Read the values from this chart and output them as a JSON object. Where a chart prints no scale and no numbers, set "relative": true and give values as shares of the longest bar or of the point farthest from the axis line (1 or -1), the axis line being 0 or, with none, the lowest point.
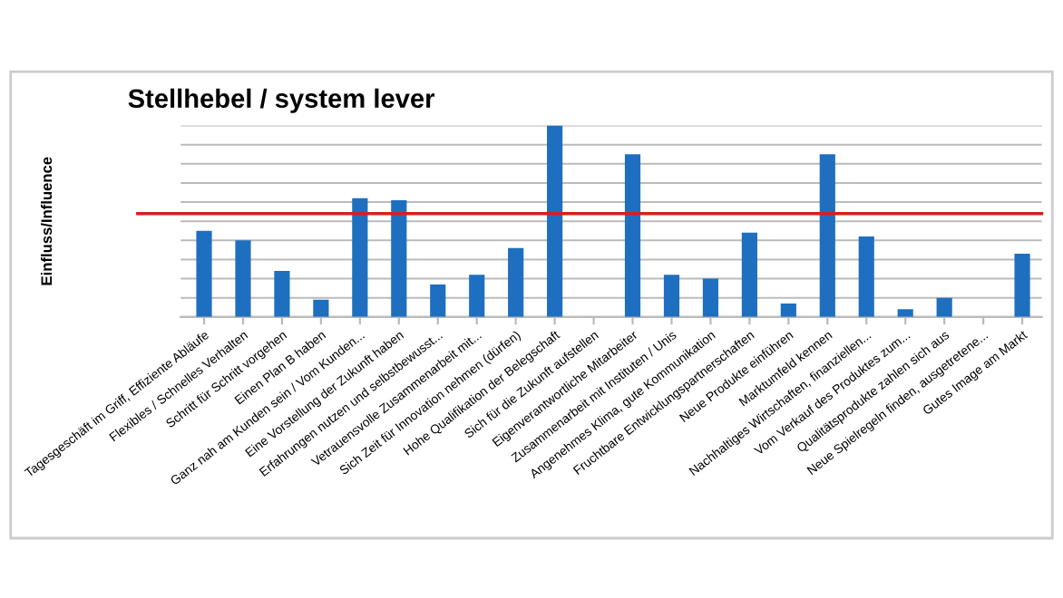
{
  "chart_data": {
    "type": "bar",
    "title": "Stellhebel / system lever",
    "ylabel": "Einfluss/Influence",
    "relative": true,
    "grid": "y",
    "legend": false,
    "categories": [
      "Tagesgeschäft im Griff, Effiziente Abläufe",
      "Flexibles / Schnelles Verhalten",
      "Schritt für Schritt vorgehen",
      "Einen Plan B haben",
      "Ganz nah am Kunden sein / Vom Kunden...",
      "Eine Vorstellung der Zukunft haben",
      "Erfahrungen nutzen und selbstbewusst...",
      "Vetrauensvolle Zusammenarbeit mit...",
      "Sich Zeit für Innovation nehmen (dürfen)",
      "Hohe Qualifikation der Belegschaft",
      "Sich für die Zukunft aufstellen",
      "Eigenverantwortliche Mitarbeiter",
      "Zusammenarbeit mit Instituten / Unis",
      "Angenehmes Klima, gute Kommunikation",
      "Fruchtbare Entwicklungspartnerschaften",
      "Neue Produkte einführen",
      "Marktumfeld kennen",
      "Nachhaltiges Wirtschaften, finanziellen...",
      "Vom Verkauf des Produktes zum...",
      "Qualitätsprodukte zahlen sich aus",
      "Neue Spielregeln finden, ausgetretene...",
      "Gutes Image am Markt"
    ],
    "series": [
      {
        "color": "#1f6fc0",
        "values": [
          0.45,
          0.4,
          0.24,
          0.09,
          0.62,
          0.61,
          0.17,
          0.22,
          0.36,
          1,
          0,
          0.85,
          0.22,
          0.2,
          0.44,
          0.07,
          0.85,
          0.42,
          0.04,
          0.1,
          0,
          0.33
        ]
      }
    ],
    "ref_lines": [
      {
        "axis": "y",
        "value": 0.54,
        "color": "#d62020"
      }
    ]
  }
}
